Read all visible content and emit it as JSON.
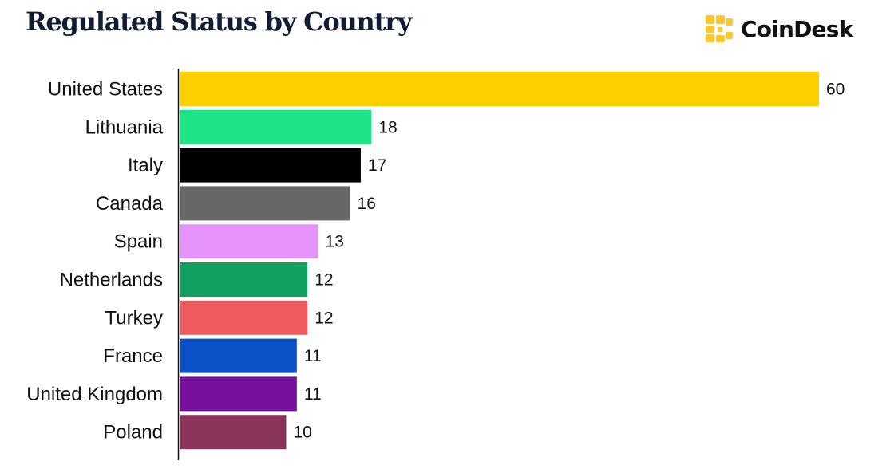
{
  "title": "Regulated Status by Country",
  "brand": {
    "name": "CoinDesk",
    "logo_icon": "coindesk-logo-icon",
    "logo_color": "#FFC72C"
  },
  "chart_data": {
    "type": "bar",
    "orientation": "horizontal",
    "title": "Regulated Status by Country",
    "xlabel": "",
    "ylabel": "",
    "xlim": [
      0,
      60
    ],
    "grid": false,
    "legend": "none",
    "categories": [
      "United States",
      "Lithuania",
      "Italy",
      "Canada",
      "Spain",
      "Netherlands",
      "Turkey",
      "France",
      "United Kingdom",
      "Poland"
    ],
    "values": [
      60,
      18,
      17,
      16,
      13,
      12,
      12,
      11,
      11,
      10
    ],
    "colors": [
      "#FFD000",
      "#1DE585",
      "#000000",
      "#676767",
      "#E592FB",
      "#12A060",
      "#F05C5E",
      "#0D51C7",
      "#76109D",
      "#8B3459"
    ]
  }
}
